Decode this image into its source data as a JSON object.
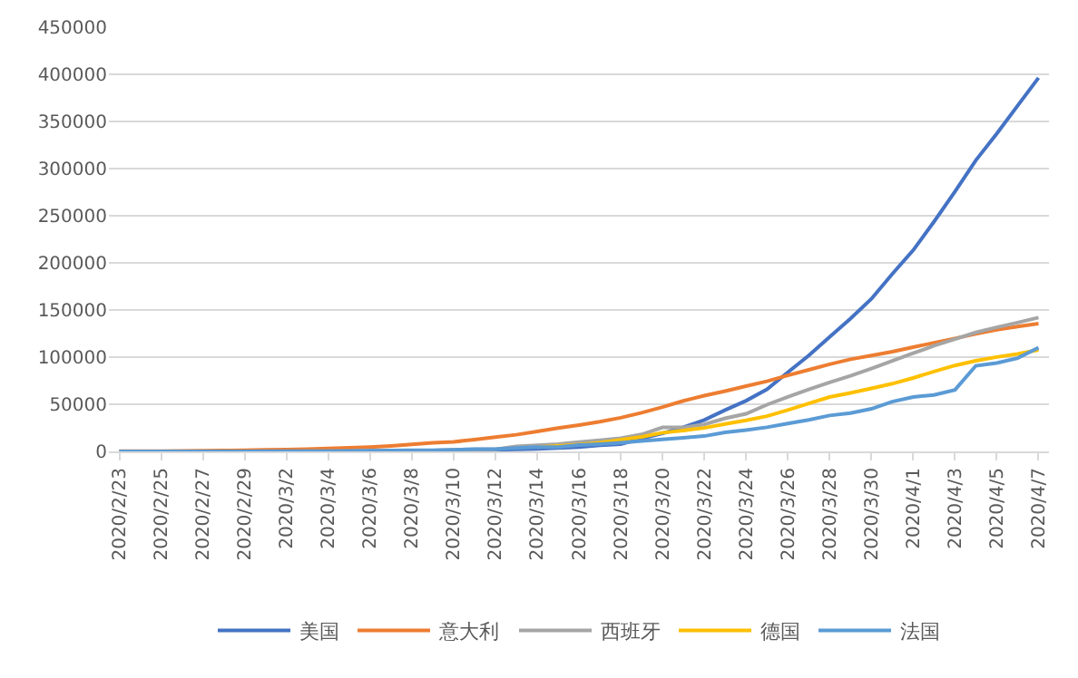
{
  "chart_data": {
    "type": "line",
    "categories": [
      "2020/2/23",
      null,
      "2020/2/25",
      null,
      "2020/2/27",
      null,
      "2020/2/29",
      null,
      "2020/3/2",
      null,
      "2020/3/4",
      null,
      "2020/3/6",
      null,
      "2020/3/8",
      null,
      "2020/3/10",
      null,
      "2020/3/12",
      null,
      "2020/3/14",
      null,
      "2020/3/16",
      null,
      "2020/3/18",
      null,
      "2020/3/20",
      null,
      "2020/3/22",
      null,
      "2020/3/24",
      null,
      "2020/3/26",
      null,
      "2020/3/28",
      null,
      "2020/3/30",
      null,
      "2020/4/1",
      null,
      "2020/4/3",
      null,
      "2020/4/5",
      null,
      "2020/4/7"
    ],
    "series": [
      {
        "name": "美国",
        "color": "#4472c4",
        "values": [
          15,
          15,
          53,
          53,
          59,
          60,
          68,
          74,
          98,
          118,
          149,
          217,
          262,
          402,
          518,
          583,
          959,
          1281,
          1663,
          2179,
          2727,
          3499,
          4632,
          6421,
          7786,
          13680,
          19101,
          25493,
          33276,
          43847,
          53740,
          65778,
          83836,
          101657,
          121478,
          140886,
          161807,
          188172,
          213372,
          243762,
          275586,
          308850,
          337072,
          366667,
          396223
        ]
      },
      {
        "name": "意大利",
        "color": "#ed7d31",
        "values": [
          155,
          229,
          322,
          453,
          655,
          888,
          1128,
          1694,
          2036,
          2502,
          3089,
          3858,
          4636,
          5883,
          7375,
          9172,
          10149,
          12462,
          15113,
          17660,
          21157,
          24747,
          27980,
          31506,
          35713,
          41035,
          47021,
          53578,
          59138,
          63927,
          69176,
          74386,
          80589,
          86498,
          92472,
          97689,
          101739,
          105792,
          110574,
          115242,
          119827,
          124632,
          128948,
          132547,
          135586
        ]
      },
      {
        "name": "西班牙",
        "color": "#a5a5a5",
        "values": [
          2,
          2,
          6,
          13,
          15,
          32,
          45,
          84,
          120,
          165,
          222,
          259,
          400,
          500,
          673,
          1073,
          1695,
          2277,
          2277,
          5232,
          6391,
          7798,
          9942,
          11748,
          13910,
          17963,
          25374,
          25374,
          28603,
          35136,
          39885,
          49515,
          57786,
          65719,
          73235,
          80110,
          87956,
          95923,
          104118,
          112065,
          119199,
          126168,
          131646,
          136675,
          141942
        ]
      },
      {
        "name": "德国",
        "color": "#ffc000",
        "values": [
          null,
          null,
          null,
          null,
          null,
          null,
          null,
          null,
          null,
          null,
          null,
          null,
          null,
          null,
          null,
          null,
          null,
          null,
          null,
          null,
          4585,
          5795,
          7272,
          9257,
          12327,
          15320,
          19848,
          22213,
          24873,
          29056,
          32986,
          37323,
          43938,
          50871,
          57695,
          62095,
          66885,
          71808,
          77872,
          84794,
          91159,
          96092,
          100123,
          103374,
          107663
        ]
      },
      {
        "name": "法国",
        "color": "#5b9bd5",
        "values": [
          12,
          12,
          12,
          18,
          38,
          57,
          100,
          130,
          191,
          204,
          288,
          380,
          656,
          957,
          1136,
          1219,
          1794,
          2293,
          2293,
          3681,
          4496,
          4532,
          6683,
          7715,
          9124,
          10970,
          12758,
          14463,
          16243,
          20123,
          22622,
          25600,
          29551,
          33402,
          38105,
          40708,
          45170,
          52827,
          57749,
          59929,
          65202,
          90848,
          93773,
          98963,
          110065
        ]
      }
    ],
    "ylim": [
      0,
      450000
    ],
    "yticks": [
      0,
      50000,
      100000,
      150000,
      200000,
      250000,
      300000,
      350000,
      400000,
      450000
    ],
    "grid": "y",
    "legend": "bottom",
    "marker": "none",
    "line_style": "solid"
  }
}
